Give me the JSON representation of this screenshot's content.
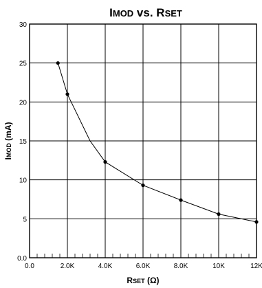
{
  "chart_data": {
    "type": "line",
    "title": "IMOD vs. RSET",
    "xlabel": "RSET (Ω)",
    "ylabel": "IMOD (mA)",
    "xlim": [
      0,
      12000
    ],
    "ylim": [
      0,
      30
    ],
    "x_ticks": [
      0,
      2000,
      4000,
      6000,
      8000,
      10000,
      12000
    ],
    "x_tick_labels": [
      "0.0",
      "2.0K",
      "4.0K",
      "6.0K",
      "8.0K",
      "10K",
      "12K"
    ],
    "y_ticks": [
      0,
      5,
      10,
      15,
      20,
      25,
      30
    ],
    "y_tick_labels": [
      "0.0",
      "5",
      "10",
      "15",
      "20",
      "25",
      "30"
    ],
    "x_minor_step": 400,
    "grid": true,
    "series": [
      {
        "x": [
          1500,
          2000,
          3200,
          4000,
          6000,
          8000,
          10000,
          12000
        ],
        "y": [
          25.0,
          21.0,
          15.0,
          12.3,
          9.3,
          7.4,
          5.6,
          4.6
        ],
        "markers": [
          true,
          true,
          false,
          true,
          true,
          true,
          true,
          true
        ]
      }
    ]
  }
}
